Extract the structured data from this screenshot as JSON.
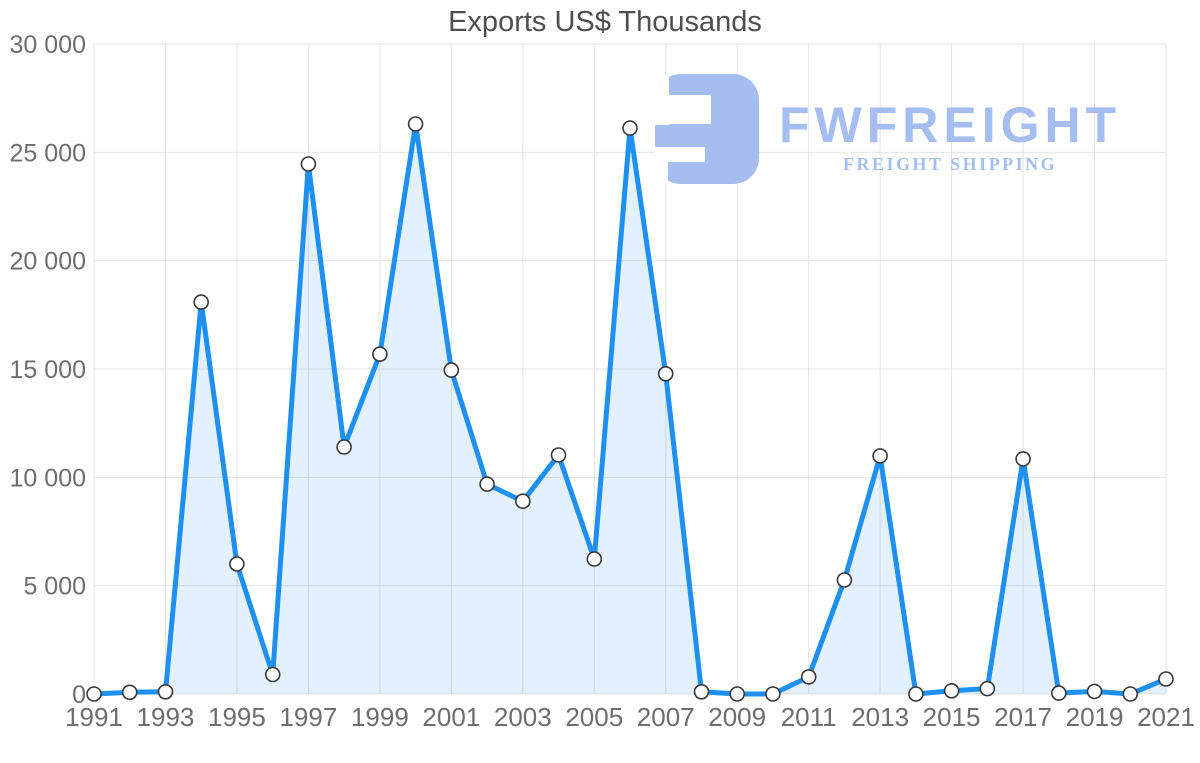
{
  "title": "Exports US$ Thousands",
  "watermark": {
    "brand": "FWFREIGHT",
    "tagline": "FREIGHT SHIPPING"
  },
  "colors": {
    "line": "#1e90f2",
    "area_fill": "rgba(30,144,242,0.13)",
    "marker_fill": "#ffffff",
    "marker_stroke": "#383838",
    "gridline": "#e4e4e4",
    "axis_label": "#6e6e6e",
    "title_text": "#4f4f4f",
    "logo": "#a5bdf1",
    "background": "#ffffff"
  },
  "chart_data": {
    "type": "area",
    "title": "Exports US$ Thousands",
    "x": [
      1991,
      1992,
      1993,
      1994,
      1995,
      1996,
      1997,
      1998,
      1999,
      2000,
      2001,
      2002,
      2003,
      2004,
      2005,
      2006,
      2007,
      2008,
      2009,
      2010,
      2011,
      2012,
      2013,
      2014,
      2015,
      2016,
      2017,
      2018,
      2019,
      2020,
      2021
    ],
    "values": [
      0,
      80,
      100,
      18090,
      6000,
      900,
      24460,
      11400,
      15690,
      26310,
      14950,
      9690,
      8900,
      11030,
      6230,
      26120,
      14780,
      100,
      0,
      0,
      790,
      5260,
      10990,
      0,
      150,
      250,
      10850,
      40,
      120,
      0,
      690
    ],
    "xlabel": "",
    "ylabel": "",
    "ylim": [
      0,
      30000
    ],
    "y_ticks": [
      0,
      5000,
      10000,
      15000,
      20000,
      25000,
      30000
    ],
    "y_tick_labels": [
      "0",
      "5 000",
      "10 000",
      "15 000",
      "20 000",
      "25 000",
      "30 000"
    ],
    "x_tick_years": [
      1991,
      1993,
      1995,
      1997,
      1999,
      2001,
      2003,
      2005,
      2007,
      2009,
      2011,
      2013,
      2015,
      2017,
      2019,
      2021
    ],
    "grid": true,
    "legend": false,
    "marker": "circle"
  }
}
